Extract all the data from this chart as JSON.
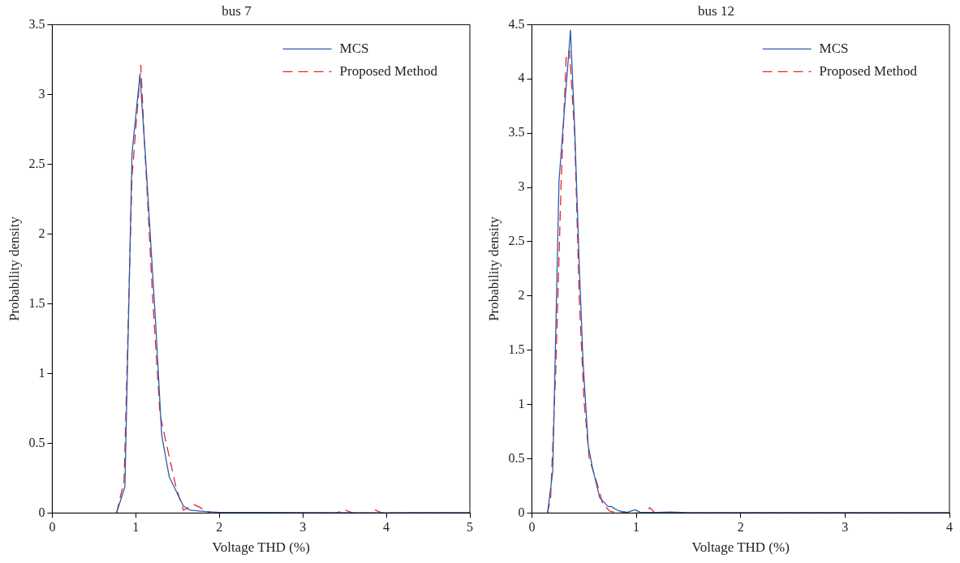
{
  "chart_data": [
    {
      "type": "line",
      "title": "bus 7",
      "xlabel": "Voltage THD (%)",
      "ylabel": "Probability density",
      "xlim": [
        0,
        5
      ],
      "xticks": [
        0,
        1,
        2,
        3,
        4,
        5
      ],
      "ylim": [
        0,
        3.5
      ],
      "yticks": [
        0,
        0.5,
        1,
        1.5,
        2,
        2.5,
        3,
        3.5
      ],
      "grid": false,
      "legend": "top right",
      "marker": "none",
      "series": [
        {
          "name": "MCS",
          "color": "#2a5db0",
          "line_style": "solid",
          "x": [
            0.77,
            0.87,
            0.955,
            1.05,
            1.12,
            1.24,
            1.31,
            1.4,
            1.57,
            1.65,
            1.84,
            2.0,
            2.5,
            3.0,
            4.0,
            5.0
          ],
          "values": [
            0,
            0.19,
            2.58,
            3.14,
            2.52,
            1.34,
            0.56,
            0.26,
            0.05,
            0.02,
            0.01,
            0.005,
            0.004,
            0.003,
            0.002,
            0.003
          ]
        },
        {
          "name": "Proposed Method",
          "color": "#e8252c",
          "line_style": "dashed",
          "x": [
            0.77,
            0.86,
            0.955,
            1.06,
            1.1,
            1.2,
            1.29,
            1.35,
            1.48,
            1.57,
            1.7,
            1.9,
            3.4,
            3.5,
            3.6,
            3.8,
            3.87,
            3.95,
            5.0
          ],
          "values": [
            0,
            0.23,
            2.41,
            3.21,
            2.71,
            1.56,
            0.71,
            0.54,
            0.19,
            0.02,
            0.06,
            0,
            0,
            0.023,
            0,
            0,
            0.02,
            0,
            0
          ]
        }
      ]
    },
    {
      "type": "line",
      "title": "bus 12",
      "xlabel": "Voltage THD (%)",
      "ylabel": "Probability density",
      "xlim": [
        0,
        4
      ],
      "xticks": [
        0,
        1,
        2,
        3,
        4
      ],
      "ylim": [
        0,
        4.5
      ],
      "yticks": [
        0,
        0.5,
        1,
        1.5,
        2,
        2.5,
        3,
        3.5,
        4,
        4.5
      ],
      "grid": false,
      "legend": "top right",
      "marker": "none",
      "series": [
        {
          "name": "MCS",
          "color": "#2a5db0",
          "line_style": "solid",
          "x": [
            0.15,
            0.2,
            0.26,
            0.37,
            0.41,
            0.455,
            0.49,
            0.54,
            0.58,
            0.65,
            0.73,
            0.76,
            0.83,
            0.91,
            0.99,
            1.04,
            1.2,
            1.32,
            1.5,
            2.0,
            3.0,
            4.0
          ],
          "values": [
            0,
            0.38,
            3.06,
            4.45,
            3.55,
            2.26,
            1.4,
            0.62,
            0.42,
            0.14,
            0.06,
            0.06,
            0.02,
            0.006,
            0.03,
            0.006,
            0.005,
            0.01,
            0.003,
            0.003,
            0.003,
            0.003
          ]
        },
        {
          "name": "Proposed Method",
          "color": "#e8252c",
          "line_style": "dashed",
          "x": [
            0.15,
            0.18,
            0.23,
            0.28,
            0.33,
            0.36,
            0.41,
            0.455,
            0.5,
            0.55,
            0.62,
            0.68,
            0.75,
            0.85,
            0.89,
            0.95,
            1.08,
            1.13,
            1.18,
            1.3,
            4.0
          ],
          "values": [
            0,
            0.14,
            1.34,
            3.03,
            4.23,
            4.26,
            3.49,
            1.95,
            1.03,
            0.5,
            0.29,
            0.08,
            0.015,
            0,
            0.01,
            0,
            0,
            0.05,
            0,
            0,
            0
          ]
        }
      ]
    }
  ]
}
